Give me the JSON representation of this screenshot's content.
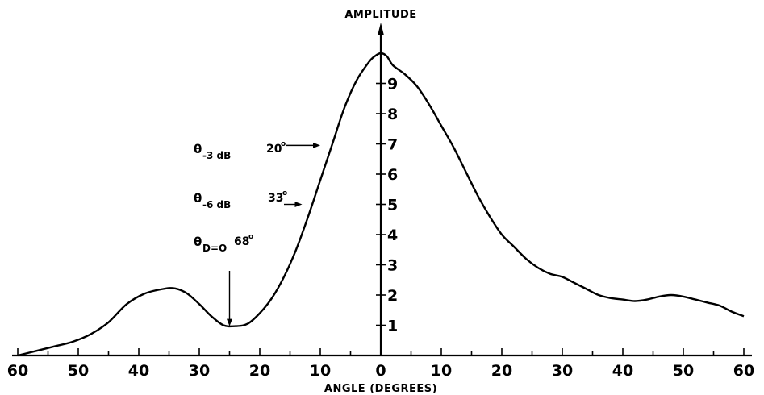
{
  "chart_data": {
    "type": "line",
    "xlabel": "ANGLE (DEGREES)",
    "ylabel": "AMPLITUDE",
    "xlim": [
      -60,
      60
    ],
    "ylim": [
      0,
      10
    ],
    "x_ticks": [
      -60,
      -50,
      -40,
      -30,
      -20,
      -10,
      0,
      10,
      20,
      30,
      40,
      50,
      60
    ],
    "x_tick_labels": [
      "60",
      "50",
      "40",
      "30",
      "20",
      "10",
      "0",
      "10",
      "20",
      "30",
      "40",
      "50",
      "60"
    ],
    "y_ticks": [
      1,
      2,
      3,
      4,
      5,
      6,
      7,
      8,
      9
    ],
    "y_tick_labels": [
      "1",
      "2",
      "3",
      "4",
      "5",
      "6",
      "7",
      "8",
      "9"
    ],
    "grid": false,
    "series": [
      {
        "x": [
          -60,
          -57,
          -54,
          -51,
          -48,
          -45,
          -42,
          -39,
          -36,
          -34,
          -32,
          -30,
          -28,
          -26,
          -24,
          -22,
          -20,
          -18,
          -16,
          -14,
          -12,
          -10,
          -8,
          -6,
          -4,
          -2,
          -1,
          0,
          1,
          2,
          4,
          6,
          8,
          10,
          12,
          14,
          16,
          18,
          20,
          22,
          24,
          26,
          28,
          30,
          32,
          34,
          36,
          38,
          40,
          42,
          44,
          46,
          48,
          50,
          52,
          54,
          56,
          58,
          60
        ],
        "y": [
          0.0,
          0.15,
          0.3,
          0.45,
          0.7,
          1.1,
          1.7,
          2.05,
          2.2,
          2.22,
          2.05,
          1.7,
          1.3,
          1.0,
          0.97,
          1.05,
          1.4,
          1.9,
          2.6,
          3.5,
          4.6,
          5.8,
          7.0,
          8.2,
          9.1,
          9.7,
          9.9,
          10.0,
          9.9,
          9.6,
          9.3,
          8.9,
          8.3,
          7.6,
          6.9,
          6.1,
          5.3,
          4.6,
          4.0,
          3.6,
          3.2,
          2.9,
          2.7,
          2.6,
          2.4,
          2.2,
          2.0,
          1.9,
          1.85,
          1.8,
          1.85,
          1.95,
          2.0,
          1.95,
          1.85,
          1.75,
          1.65,
          1.45,
          1.3
        ]
      }
    ],
    "annotations": [
      {
        "symbol": "θ",
        "subscript": "-3 dB",
        "value": "20",
        "unit": "o",
        "arrow_x": -10,
        "arrow_y": 6.95
      },
      {
        "symbol": "θ",
        "subscript": "-6 dB",
        "value": "33",
        "unit": "o",
        "arrow_x": -13,
        "arrow_y": 5.0
      },
      {
        "symbol": "θ",
        "subscript": "D=O",
        "value": "68",
        "unit": "o",
        "arrow_x": -25,
        "arrow_y": 0.97
      }
    ]
  }
}
